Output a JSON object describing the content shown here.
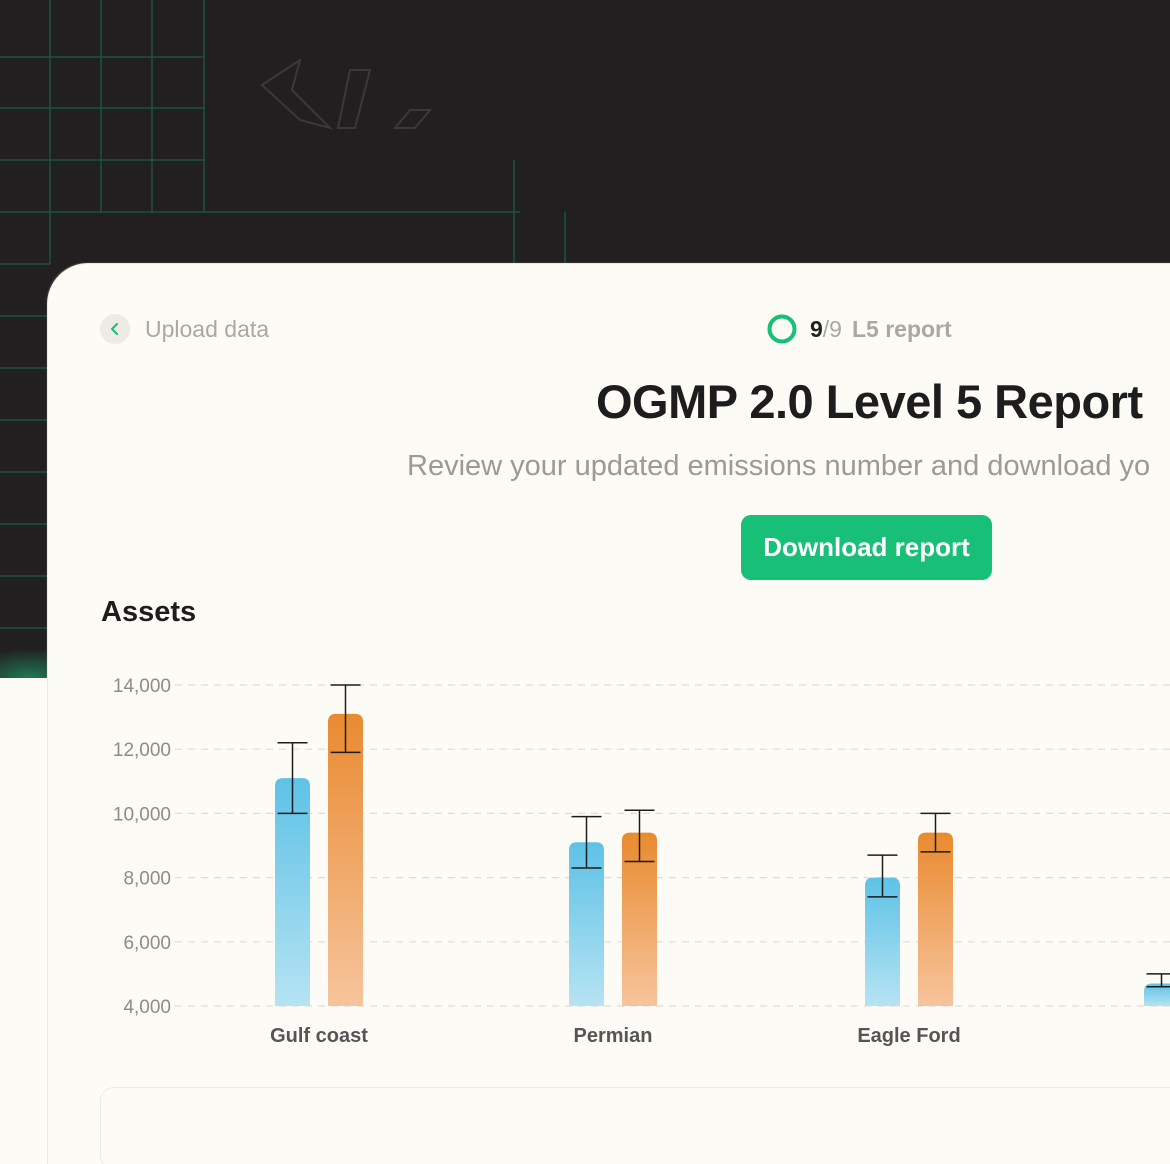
{
  "nav": {
    "back_label": "Upload data"
  },
  "progress": {
    "done": "9",
    "total_text": "/9",
    "label": "L5 report",
    "fraction": 1.0
  },
  "header": {
    "title": "OGMP 2.0 Level 5 Report",
    "subtitle": "Review your updated emissions number and download yo"
  },
  "actions": {
    "download_label": "Download report"
  },
  "section": {
    "assets_title": "Assets"
  },
  "colors": {
    "accent": "#18bf77",
    "series_blue": "#5ec2e6",
    "series_orange": "#e98a30"
  },
  "chart_data": {
    "type": "bar",
    "categories": [
      "Gulf coast",
      "Permian",
      "Eagle Ford",
      ""
    ],
    "series": [
      {
        "values": [
          11100,
          9100,
          8000,
          4700
        ],
        "err_low": [
          10000,
          8300,
          7400,
          4600
        ],
        "err_high": [
          12200,
          9900,
          8700,
          5000
        ]
      },
      {
        "values": [
          13100,
          9400,
          9400,
          null
        ],
        "err_low": [
          11900,
          8500,
          8800,
          null
        ],
        "err_high": [
          14000,
          10100,
          10000,
          null
        ]
      }
    ],
    "ylim": [
      4000,
      14000
    ],
    "yticks": [
      "14,000",
      "12,000",
      "10,000",
      "8,000",
      "6,000",
      "4,000"
    ],
    "ytick_values": [
      14000,
      12000,
      10000,
      8000,
      6000,
      4000
    ],
    "grid": true
  }
}
